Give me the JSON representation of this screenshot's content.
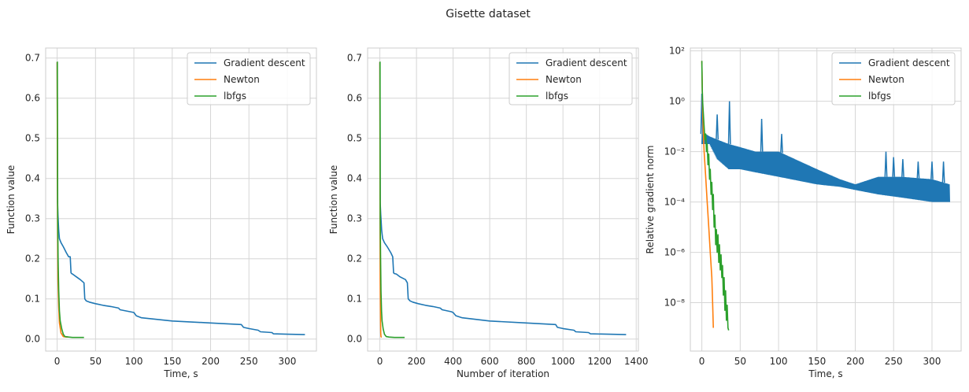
{
  "figure_title": "Gisette dataset",
  "colors": {
    "gd": "#1f77b4",
    "newton": "#ff7f0e",
    "lbfgs": "#2ca02c",
    "grid": "#d6d6d6",
    "spine": "#cccccc"
  },
  "chart_data": [
    {
      "type": "line",
      "xlabel": "Time, s",
      "ylabel": "Function value",
      "xlim": [
        -15,
        338
      ],
      "ylim": [
        -0.03,
        0.725
      ],
      "xticks": [
        0,
        50,
        100,
        150,
        200,
        250,
        300
      ],
      "xtick_labels": [
        "0",
        "50",
        "100",
        "150",
        "200",
        "250",
        "300"
      ],
      "yticks": [
        0,
        0.1,
        0.2,
        0.3,
        0.4,
        0.5,
        0.6,
        0.7
      ],
      "ytick_labels": [
        "0.0",
        "0.1",
        "0.2",
        "0.3",
        "0.4",
        "0.5",
        "0.6",
        "0.7"
      ],
      "grid": true,
      "legend": "top-right",
      "series": [
        {
          "name": "Gradient descent",
          "color": "#1f77b4",
          "x": [
            0,
            0.5,
            1,
            2,
            3,
            5,
            8,
            12,
            15,
            17,
            18,
            19,
            20,
            25,
            30,
            35,
            36,
            38,
            42,
            50,
            60,
            70,
            80,
            82,
            95,
            100,
            103,
            110,
            150,
            200,
            240,
            243,
            250,
            262,
            265,
            280,
            282,
            300,
            323
          ],
          "y": [
            0.69,
            0.34,
            0.31,
            0.27,
            0.25,
            0.24,
            0.23,
            0.215,
            0.205,
            0.205,
            0.165,
            0.163,
            0.162,
            0.155,
            0.148,
            0.14,
            0.1,
            0.095,
            0.092,
            0.088,
            0.084,
            0.081,
            0.077,
            0.073,
            0.068,
            0.066,
            0.058,
            0.053,
            0.045,
            0.04,
            0.036,
            0.029,
            0.026,
            0.022,
            0.018,
            0.016,
            0.013,
            0.012,
            0.011
          ]
        },
        {
          "name": "Newton",
          "color": "#ff7f0e",
          "x": [
            0,
            0.5,
            1,
            2,
            3,
            5,
            8,
            12,
            15
          ],
          "y": [
            0.69,
            0.3,
            0.15,
            0.08,
            0.04,
            0.015,
            0.006,
            0.005,
            0.005
          ]
        },
        {
          "name": "lbfgs",
          "color": "#2ca02c",
          "x": [
            0,
            0.3,
            0.7,
            1.2,
            2,
            3,
            4,
            6,
            8,
            10,
            15,
            20,
            30,
            35
          ],
          "y": [
            0.69,
            0.69,
            0.3,
            0.2,
            0.12,
            0.07,
            0.045,
            0.025,
            0.012,
            0.006,
            0.005,
            0.004,
            0.004,
            0.004
          ]
        }
      ]
    },
    {
      "type": "line",
      "xlabel": "Number of iteration",
      "ylabel": "Function value",
      "xlim": [
        -67,
        1412
      ],
      "ylim": [
        -0.03,
        0.725
      ],
      "xticks": [
        0,
        200,
        400,
        600,
        800,
        1000,
        1200,
        1400
      ],
      "xtick_labels": [
        "0",
        "200",
        "400",
        "600",
        "800",
        "1000",
        "1200",
        "1400"
      ],
      "yticks": [
        0,
        0.1,
        0.2,
        0.3,
        0.4,
        0.5,
        0.6,
        0.7
      ],
      "ytick_labels": [
        "0.0",
        "0.1",
        "0.2",
        "0.3",
        "0.4",
        "0.5",
        "0.6",
        "0.7"
      ],
      "grid": true,
      "legend": "top-right",
      "series": [
        {
          "name": "Gradient descent",
          "color": "#1f77b4",
          "x": [
            0,
            2,
            5,
            10,
            15,
            25,
            40,
            60,
            70,
            75,
            80,
            90,
            110,
            140,
            150,
            155,
            165,
            180,
            210,
            250,
            290,
            330,
            340,
            390,
            400,
            415,
            450,
            600,
            800,
            960,
            970,
            1000,
            1060,
            1070,
            1140,
            1150,
            1250,
            1345
          ],
          "y": [
            0.69,
            0.34,
            0.31,
            0.27,
            0.25,
            0.24,
            0.23,
            0.215,
            0.205,
            0.165,
            0.163,
            0.162,
            0.155,
            0.148,
            0.14,
            0.1,
            0.095,
            0.092,
            0.088,
            0.084,
            0.081,
            0.077,
            0.073,
            0.068,
            0.066,
            0.058,
            0.053,
            0.045,
            0.04,
            0.036,
            0.029,
            0.026,
            0.022,
            0.018,
            0.016,
            0.013,
            0.012,
            0.011
          ]
        },
        {
          "name": "Newton",
          "color": "#ff7f0e",
          "x": [
            0,
            1,
            2,
            3,
            4,
            5,
            6,
            8,
            10
          ],
          "y": [
            0.69,
            0.3,
            0.15,
            0.08,
            0.04,
            0.015,
            0.006,
            0.005,
            0.005
          ]
        },
        {
          "name": "lbfgs",
          "color": "#2ca02c",
          "x": [
            0,
            1,
            2,
            4,
            6,
            9,
            12,
            18,
            25,
            35,
            50,
            80,
            110,
            135
          ],
          "y": [
            0.69,
            0.69,
            0.3,
            0.2,
            0.12,
            0.07,
            0.045,
            0.025,
            0.012,
            0.006,
            0.005,
            0.004,
            0.004,
            0.004
          ]
        }
      ]
    },
    {
      "type": "line",
      "xlabel": "Time, s",
      "ylabel": "Relative gradient norm",
      "yscale": "log",
      "xlim": [
        -15,
        338
      ],
      "ylim": [
        1.2e-10,
        130
      ],
      "xticks": [
        0,
        50,
        100,
        150,
        200,
        250,
        300
      ],
      "xtick_labels": [
        "0",
        "50",
        "100",
        "150",
        "200",
        "250",
        "300"
      ],
      "yticks": [
        1e-08,
        1e-06,
        0.0001,
        0.01,
        1,
        100
      ],
      "ytick_labels": [
        "10⁻⁸",
        "10⁻⁶",
        "10⁻⁴",
        "10⁻²",
        "10⁰",
        "10²"
      ],
      "grid": true,
      "legend": "top-right",
      "series": [
        {
          "name": "Gradient descent",
          "color": "#1f77b4",
          "style": "oscillating",
          "upper": {
            "x": [
              0,
              5,
              10,
              20,
              35,
              50,
              70,
              100,
              150,
              180,
              200,
              230,
              260,
              300,
              323
            ],
            "y": [
              0.05,
              0.05,
              0.04,
              0.03,
              0.02,
              0.015,
              0.01,
              0.01,
              0.002,
              0.0008,
              0.0005,
              0.001,
              0.001,
              0.0008,
              0.0005
            ]
          },
          "lower": {
            "x": [
              0,
              5,
              10,
              20,
              35,
              50,
              70,
              100,
              150,
              180,
              200,
              230,
              260,
              300,
              323
            ],
            "y": [
              0.02,
              0.02,
              0.02,
              0.005,
              0.002,
              0.002,
              0.0015,
              0.001,
              0.0005,
              0.0004,
              0.0003,
              0.0002,
              0.00015,
              0.0001,
              0.0001
            ]
          },
          "spikes": [
            {
              "x": 0,
              "y": 2
            },
            {
              "x": 20,
              "y": 0.3
            },
            {
              "x": 36,
              "y": 1
            },
            {
              "x": 78,
              "y": 0.2
            },
            {
              "x": 104,
              "y": 0.05
            },
            {
              "x": 240,
              "y": 0.01
            },
            {
              "x": 250,
              "y": 0.006
            },
            {
              "x": 262,
              "y": 0.005
            },
            {
              "x": 282,
              "y": 0.004
            },
            {
              "x": 300,
              "y": 0.004
            },
            {
              "x": 315,
              "y": 0.004
            }
          ]
        },
        {
          "name": "Newton",
          "color": "#ff7f0e",
          "x": [
            0,
            1,
            2,
            3,
            5,
            7,
            9,
            11,
            13,
            14,
            15
          ],
          "y": [
            40,
            0.5,
            0.05,
            0.01,
            0.001,
            0.0001,
            1e-05,
            1e-06,
            1e-07,
            1e-08,
            1e-09
          ]
        },
        {
          "name": "lbfgs",
          "color": "#2ca02c",
          "x": [
            0,
            0.5,
            1,
            2,
            3,
            4,
            5,
            6,
            7,
            8,
            9,
            10,
            11,
            12,
            13,
            14,
            15,
            16,
            17,
            18,
            19,
            20,
            21,
            22,
            23,
            24,
            25,
            26,
            27,
            28,
            29,
            30,
            31,
            32,
            33,
            34,
            35
          ],
          "y": [
            40,
            3,
            1,
            0.3,
            0.1,
            0.03,
            0.05,
            0.01,
            0.02,
            0.003,
            0.008,
            0.0008,
            0.002,
            0.0002,
            0.0006,
            5e-05,
            0.0002,
            1e-05,
            3e-05,
            2e-06,
            8e-06,
            1e-06,
            5e-06,
            4e-07,
            2e-06,
            2e-07,
            8e-07,
            1e-07,
            3e-07,
            2e-08,
            1e-07,
            5e-09,
            3e-08,
            2e-09,
            8e-09,
            1e-09,
            8e-10
          ]
        }
      ]
    }
  ]
}
